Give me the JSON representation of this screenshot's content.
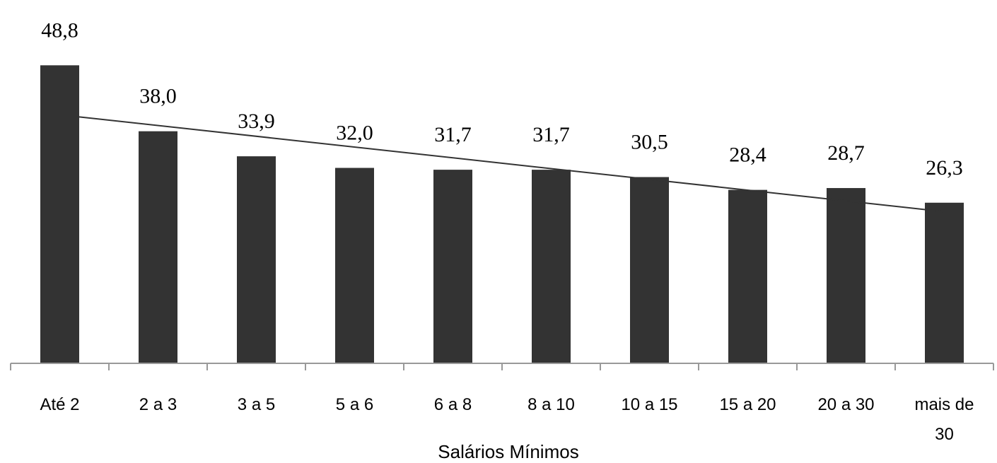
{
  "chart_data": {
    "type": "bar",
    "categories": [
      [
        "Até 2"
      ],
      [
        "2 a 3"
      ],
      [
        "3 a 5"
      ],
      [
        "5 a 6"
      ],
      [
        "6 a 8"
      ],
      [
        "8 a 10"
      ],
      [
        "10 a 15"
      ],
      [
        "15 a 20"
      ],
      [
        "20 a 30"
      ],
      [
        "mais de",
        "30"
      ]
    ],
    "values": [
      48.8,
      38.0,
      33.9,
      32.0,
      31.7,
      31.7,
      30.5,
      28.4,
      28.7,
      26.3
    ],
    "value_labels": [
      "48,8",
      "38,0",
      "33,9",
      "32,0",
      "31,7",
      "31,7",
      "30,5",
      "28,4",
      "28,7",
      "26,3"
    ],
    "xlabel": "Salários Mínimos",
    "ylabel": "",
    "ylim": [
      0,
      50
    ],
    "trendline": "linear",
    "grid": false,
    "legend": "none",
    "colors": {
      "bar": "#333333",
      "trend": "#333333",
      "axis": "#999999"
    }
  }
}
